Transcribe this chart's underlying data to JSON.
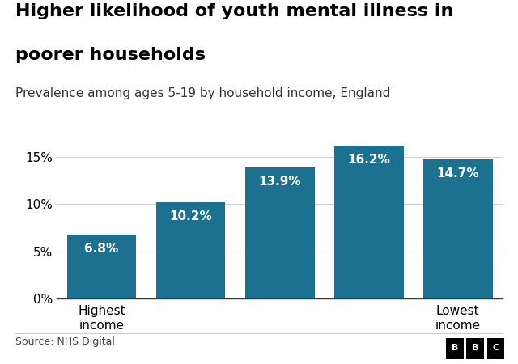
{
  "title_line1": "Higher likelihood of youth mental illness in",
  "title_line2": "poorer households",
  "subtitle": "Prevalence among ages 5-19 by household income, England",
  "values": [
    6.8,
    10.2,
    13.9,
    16.2,
    14.7
  ],
  "labels": [
    "6.8%",
    "10.2%",
    "13.9%",
    "16.2%",
    "14.7%"
  ],
  "x_positions": [
    0,
    1,
    2,
    3,
    4
  ],
  "bar_color": "#1c7191",
  "bar_width": 0.78,
  "xlabel_first": "Highest\nincome",
  "xlabel_last": "Lowest\nincome",
  "ylabel_ticks": [
    0,
    5,
    10,
    15
  ],
  "ylim": [
    0,
    18.5
  ],
  "source_text": "Source: NHS Digital",
  "bbc_text": "BBC",
  "background_color": "#ffffff",
  "title_fontsize": 16,
  "subtitle_fontsize": 11,
  "label_fontsize": 11,
  "tick_fontsize": 11,
  "source_fontsize": 9,
  "footer_line_color": "#cccccc"
}
